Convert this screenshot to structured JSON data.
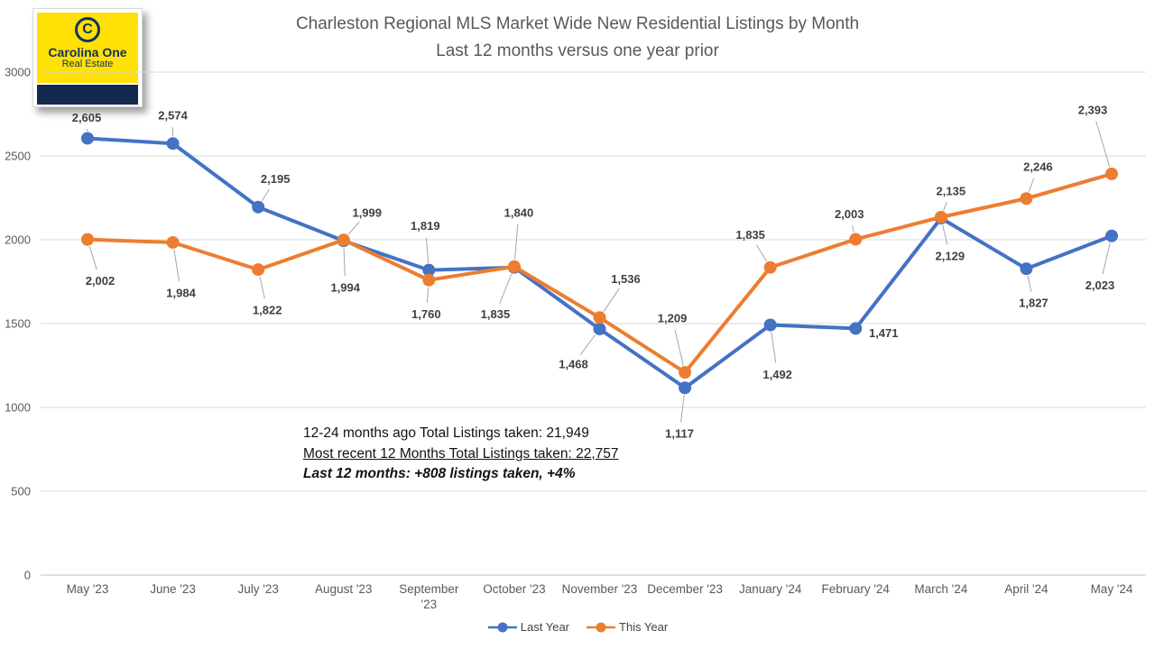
{
  "logo": {
    "monogram": "C",
    "brand": "Carolina One",
    "sub": "Real Estate",
    "yellow": "#FFE105",
    "navy": "#14325F"
  },
  "title": {
    "line1": "Charleston Regional MLS Market Wide New Residential Listings by Month",
    "line2": "Last 12 months versus one year prior"
  },
  "annotation": {
    "line1": "12-24 months ago Total Listings taken: 21,949",
    "line2": "Most recent 12 Months Total Listings taken: 22,757",
    "line3": "Last 12 months: +808 listings taken, +4%"
  },
  "legend": [
    {
      "label": "Last Year",
      "color": "#4472C4"
    },
    {
      "label": "This Year",
      "color": "#ED7D31"
    }
  ],
  "chart_data": {
    "type": "line",
    "title": "Charleston Regional MLS Market Wide New Residential Listings by Month — Last 12 months versus one year prior",
    "categories": [
      "May '23",
      "June '23",
      "July '23",
      "August '23",
      "September '23",
      "October '23",
      "November '23",
      "December '23",
      "January '24",
      "February '24",
      "March '24",
      "April '24",
      "May '24"
    ],
    "category_wrap": {
      "4": [
        "September",
        "'23"
      ]
    },
    "series": [
      {
        "name": "Last Year",
        "color": "#4472C4",
        "values": [
          2605,
          2574,
          2195,
          1994,
          1819,
          1835,
          1468,
          1117,
          1492,
          1471,
          2129,
          1827,
          2023
        ],
        "label_offsets": [
          [
            -1,
            -23
          ],
          [
            0,
            -31
          ],
          [
            19,
            -31
          ],
          [
            2,
            52
          ],
          [
            -4,
            -49
          ],
          [
            -21,
            52
          ],
          [
            -29,
            39
          ],
          [
            -6,
            51
          ],
          [
            8,
            55
          ],
          [
            31,
            5
          ],
          [
            10,
            42
          ],
          [
            8,
            38
          ],
          [
            -13,
            55
          ]
        ]
      },
      {
        "name": "This Year",
        "color": "#ED7D31",
        "values": [
          2002,
          1984,
          1822,
          1999,
          1760,
          1840,
          1536,
          1209,
          1835,
          2003,
          2135,
          2246,
          2393
        ],
        "label_offsets": [
          [
            14,
            46
          ],
          [
            9,
            56
          ],
          [
            10,
            45
          ],
          [
            26,
            -30
          ],
          [
            -3,
            38
          ],
          [
            5,
            -60
          ],
          [
            29,
            -43
          ],
          [
            -14,
            -60
          ],
          [
            -22,
            -36
          ],
          [
            -7,
            -28
          ],
          [
            11,
            -29
          ],
          [
            13,
            -35
          ],
          [
            -21,
            -71
          ]
        ]
      }
    ],
    "xlabel": "",
    "ylabel": "",
    "ylim": [
      0,
      3000
    ],
    "ytick_step": 500,
    "grid": true,
    "legend_position": "bottom",
    "colors": {
      "grid": "#D9D9D9",
      "axis": "#BFBFBF",
      "tick_text": "#595959",
      "data_label": "#404040",
      "leader": "#A6A6A6"
    }
  }
}
